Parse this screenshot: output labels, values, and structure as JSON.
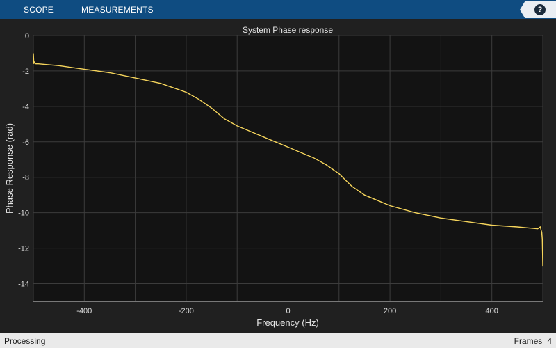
{
  "toolstrip": {
    "tabs": [
      {
        "label": "SCOPE"
      },
      {
        "label": "MEASUREMENTS"
      }
    ],
    "help_label": "?"
  },
  "statusbar": {
    "left": "Processing",
    "right": "Frames=4"
  },
  "colors": {
    "toolstrip": "#0f4c81",
    "plot_bg": "#131313",
    "trace": "#f6d55c",
    "grid": "#3c3c3c"
  },
  "chart_data": {
    "type": "line",
    "title": "System Phase response",
    "xlabel": "Frequency (Hz)",
    "ylabel": "Phase Response (rad)",
    "xlim": [
      -500,
      500
    ],
    "ylim": [
      -15,
      0
    ],
    "xticks": [
      -400,
      -200,
      0,
      200,
      400
    ],
    "yticks": [
      0,
      -2,
      -4,
      -6,
      -8,
      -10,
      -12,
      -14
    ],
    "grid": true,
    "series": [
      {
        "x": [
          -500,
          -499,
          -498,
          -495,
          -490,
          -450,
          -400,
          -350,
          -300,
          -250,
          -200,
          -175,
          -150,
          -125,
          -100,
          -75,
          -50,
          -25,
          0,
          25,
          50,
          75,
          100,
          125,
          150,
          175,
          200,
          250,
          300,
          350,
          400,
          450,
          490,
          495,
          498,
          499,
          500
        ],
        "y": [
          -1.0,
          -1.6,
          -1.5,
          -1.6,
          -1.6,
          -1.7,
          -1.9,
          -2.1,
          -2.4,
          -2.7,
          -3.2,
          -3.6,
          -4.1,
          -4.7,
          -5.1,
          -5.4,
          -5.7,
          -6.0,
          -6.3,
          -6.6,
          -6.9,
          -7.3,
          -7.8,
          -8.5,
          -9.0,
          -9.3,
          -9.6,
          -10.0,
          -10.3,
          -10.5,
          -10.7,
          -10.8,
          -10.9,
          -10.8,
          -11.1,
          -11.5,
          -13.0
        ]
      }
    ]
  }
}
